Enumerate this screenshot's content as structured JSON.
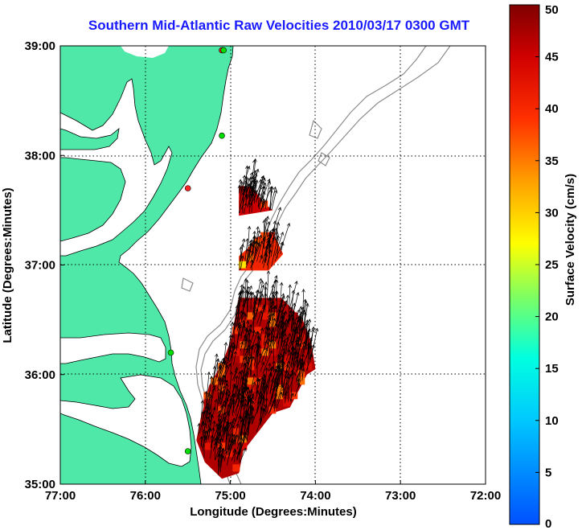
{
  "title": "Southern Mid-Atlantic Raw Velocities 2010/03/17 0300 GMT",
  "x_axis": {
    "label": "Longitude (Degrees:Minutes)",
    "ticks": [
      {
        "value": -77,
        "label": "77:00"
      },
      {
        "value": -76,
        "label": "76:00"
      },
      {
        "value": -75,
        "label": "75:00"
      },
      {
        "value": -74,
        "label": "74:00"
      },
      {
        "value": -73,
        "label": "73:00"
      },
      {
        "value": -72,
        "label": "72:00"
      }
    ],
    "range": [
      -77,
      -72
    ]
  },
  "y_axis": {
    "label": "Latitude (Degrees:Minutes)",
    "ticks": [
      {
        "value": 35,
        "label": "35:00"
      },
      {
        "value": 36,
        "label": "36:00"
      },
      {
        "value": 37,
        "label": "37:00"
      },
      {
        "value": 38,
        "label": "38:00"
      },
      {
        "value": 39,
        "label": "39:00"
      }
    ],
    "range": [
      35,
      39
    ]
  },
  "colorbar": {
    "label": "Surface Velocity (cm/s)",
    "range": [
      0,
      50
    ],
    "ticks": [
      {
        "value": 0,
        "label": "0"
      },
      {
        "value": 5,
        "label": "5"
      },
      {
        "value": 10,
        "label": "10"
      },
      {
        "value": 15,
        "label": "15"
      },
      {
        "value": 20,
        "label": "20"
      },
      {
        "value": 25,
        "label": "25"
      },
      {
        "value": 30,
        "label": "30"
      },
      {
        "value": 35,
        "label": "35"
      },
      {
        "value": 40,
        "label": "40"
      },
      {
        "value": 45,
        "label": "45"
      },
      {
        "value": 50,
        "label": "50"
      }
    ]
  },
  "colors": {
    "land": "#50e8a8",
    "title": "#1a1aff",
    "bathymetry": "#8c8c8c",
    "station_green": "#00dd00",
    "station_red": "#ff2222"
  },
  "stations": [
    {
      "lon": -75.1,
      "lat": 38.96,
      "color": "red"
    },
    {
      "lon": -75.08,
      "lat": 38.96,
      "color": "green"
    },
    {
      "lon": -75.1,
      "lat": 38.18,
      "color": "green"
    },
    {
      "lon": -75.5,
      "lat": 37.7,
      "color": "red"
    },
    {
      "lon": -75.7,
      "lat": 36.2,
      "color": "green"
    },
    {
      "lon": -75.5,
      "lat": 35.3,
      "color": "green"
    }
  ],
  "velocity_regions": [
    {
      "name": "north-patch",
      "polygon": [
        [
          -74.9,
          37.7
        ],
        [
          -74.75,
          37.72
        ],
        [
          -74.6,
          37.56
        ],
        [
          -74.5,
          37.5
        ],
        [
          -74.9,
          37.45
        ]
      ],
      "mean_speed": 45
    },
    {
      "name": "middle-patch",
      "polygon": [
        [
          -74.9,
          37.08
        ],
        [
          -74.8,
          37.15
        ],
        [
          -74.7,
          37.25
        ],
        [
          -74.5,
          37.3
        ],
        [
          -74.38,
          37.1
        ],
        [
          -74.55,
          36.95
        ],
        [
          -74.9,
          36.95
        ]
      ],
      "mean_speed": 40
    },
    {
      "name": "south-patch",
      "polygon": [
        [
          -74.9,
          36.7
        ],
        [
          -74.4,
          36.7
        ],
        [
          -74.15,
          36.5
        ],
        [
          -74.05,
          36.3
        ],
        [
          -74,
          36.05
        ],
        [
          -74.1,
          36
        ],
        [
          -74.2,
          35.85
        ],
        [
          -74.3,
          35.7
        ],
        [
          -74.5,
          35.65
        ],
        [
          -74.6,
          35.55
        ],
        [
          -74.75,
          35.4
        ],
        [
          -74.85,
          35.3
        ],
        [
          -74.9,
          35.1
        ],
        [
          -75.1,
          35.05
        ],
        [
          -75.3,
          35.2
        ],
        [
          -75.4,
          35.4
        ],
        [
          -75.35,
          35.6
        ],
        [
          -75.25,
          35.9
        ],
        [
          -75.1,
          36.1
        ],
        [
          -75,
          36.3
        ],
        [
          -74.95,
          36.5
        ]
      ],
      "mean_speed": 47
    }
  ]
}
